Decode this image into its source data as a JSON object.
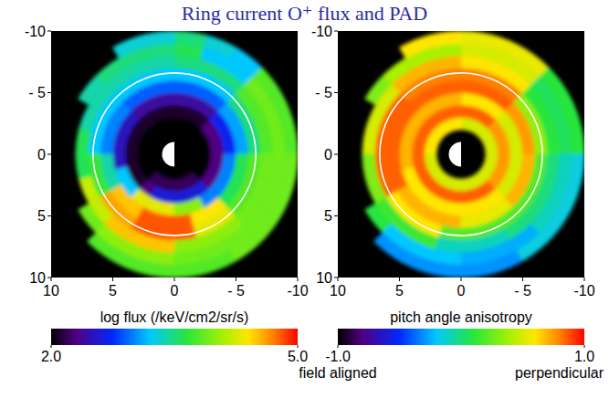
{
  "title": "Ring current O⁺ flux and PAD",
  "chart_data": [
    {
      "type": "polar_heatmap",
      "xlim": [
        10,
        -10
      ],
      "xticks": [
        10,
        5,
        0,
        {
          "value": -5,
          "label": "- 5"
        },
        -10
      ],
      "ylim": [
        -10,
        10
      ],
      "yticks": [
        -10,
        {
          "value": -5,
          "label": "- 5"
        },
        0,
        5,
        10
      ],
      "ring_radius": 6.6,
      "earth_radius": 1,
      "r_bins": [
        2,
        3,
        4,
        5,
        6,
        7,
        8,
        9,
        10
      ],
      "mlt_bins": [
        0,
        1,
        2,
        3,
        4,
        5,
        6,
        7,
        8,
        9,
        10,
        11,
        12,
        13,
        14,
        15,
        16,
        17,
        18,
        19,
        20,
        21,
        22,
        23,
        24
      ],
      "cells": [
        [
          2.0,
          2.0,
          2.0,
          2.0,
          2.0,
          2.0,
          2.0,
          2.0,
          2.0,
          2.0,
          2.0,
          2.0,
          2.0,
          2.0,
          2.0,
          2.2,
          2.2,
          2.2,
          2.2,
          2.2,
          2.2,
          2.0,
          2.0,
          2.0
        ],
        [
          2.3,
          2.3,
          2.3,
          2.1,
          2.1,
          2.1,
          2.1,
          2.1,
          2.1,
          2.1,
          2.1,
          2.1,
          2.1,
          2.1,
          2.1,
          2.3,
          2.6,
          2.6,
          2.6,
          2.6,
          2.6,
          2.3,
          2.3,
          2.3
        ],
        [
          2.7,
          2.7,
          2.7,
          2.4,
          2.4,
          2.4,
          2.4,
          2.4,
          2.4,
          2.5,
          2.5,
          2.5,
          2.5,
          3.2,
          3.2,
          4.3,
          4.3,
          4.3,
          4.0,
          4.0,
          3.0,
          3.0,
          3.0,
          3.0
        ],
        [
          3.1,
          3.1,
          3.1,
          2.9,
          2.9,
          2.9,
          2.9,
          2.9,
          2.9,
          3.0,
          3.0,
          3.0,
          3.4,
          3.4,
          4.5,
          4.5,
          4.8,
          4.8,
          4.8,
          4.4,
          4.4,
          3.6,
          3.6,
          3.6
        ],
        [
          3.5,
          3.5,
          3.5,
          3.2,
          3.2,
          3.2,
          3.2,
          3.2,
          3.2,
          3.2,
          3.2,
          3.2,
          3.7,
          3.7,
          4.6,
          4.6,
          4.8,
          4.8,
          4.8,
          4.3,
          4.3,
          3.8,
          3.8,
          3.8
        ],
        [
          3.8,
          3.8,
          3.8,
          3.5,
          3.5,
          3.5,
          3.4,
          3.4,
          3.4,
          3.4,
          3.4,
          3.6,
          3.6,
          4.2,
          4.2,
          4.5,
          4.5,
          4.5,
          4.0,
          4.0,
          4.0,
          3.9,
          3.9,
          3.9
        ],
        [
          3.9,
          3.9,
          3.9,
          3.2,
          3.2,
          3.6,
          3.5,
          3.5,
          3.5,
          3.4,
          null,
          null,
          null,
          null,
          3.9,
          4.0,
          4.0,
          4.0,
          3.9,
          3.9,
          3.9,
          3.9,
          3.9,
          3.9
        ],
        [
          3.8,
          3.8,
          3.8,
          3.2,
          3.3,
          3.5,
          3.3,
          3.3,
          null,
          null,
          null,
          null,
          null,
          null,
          null,
          3.8,
          3.8,
          3.8,
          3.8,
          3.8,
          3.9,
          3.9,
          3.9,
          3.9
        ]
      ],
      "colorbar": {
        "label": "log flux (/keV/cm2/sr/s)",
        "range": [
          2,
          5
        ],
        "ticks": [
          {
            "value": 2,
            "label": "2.0"
          },
          {
            "value": 5,
            "label": "5.0"
          }
        ]
      }
    },
    {
      "type": "polar_heatmap",
      "xlim": [
        10,
        -10
      ],
      "xticks": [
        10,
        5,
        0,
        {
          "value": -5,
          "label": "- 5"
        },
        -10
      ],
      "ylim": [
        -10,
        10
      ],
      "yticks": [
        -10,
        {
          "value": -5,
          "label": "- 5"
        },
        0,
        5,
        10
      ],
      "ring_radius": 6.6,
      "earth_radius": 1,
      "r_bins": [
        2,
        3,
        4,
        5,
        6,
        7,
        8,
        9,
        10
      ],
      "mlt_bins": [
        0,
        1,
        2,
        3,
        4,
        5,
        6,
        7,
        8,
        9,
        10,
        11,
        12,
        13,
        14,
        15,
        16,
        17,
        18,
        19,
        20,
        21,
        22,
        23,
        24
      ],
      "cells": [
        [
          0.5,
          0.5,
          0.5,
          0.5,
          0.5,
          0.5,
          0.6,
          0.6,
          0.6,
          0.6,
          0.6,
          0.6,
          0.5,
          0.5,
          0.5,
          0.5,
          0.5,
          0.5,
          0.5,
          0.5,
          0.5,
          0.5,
          0.5,
          0.5
        ],
        [
          0.75,
          0.75,
          0.75,
          0.85,
          0.85,
          0.85,
          0.85,
          0.85,
          0.85,
          0.85,
          0.85,
          0.85,
          0.85,
          0.85,
          0.85,
          0.85,
          0.85,
          0.85,
          0.85,
          0.85,
          0.85,
          0.75,
          0.75,
          0.75
        ],
        [
          0.5,
          0.5,
          0.5,
          0.6,
          0.6,
          0.6,
          0.7,
          0.7,
          0.7,
          0.7,
          0.7,
          0.7,
          0.7,
          0.6,
          0.6,
          0.6,
          0.6,
          0.6,
          0.6,
          0.6,
          0.6,
          0.5,
          0.5,
          0.5
        ],
        [
          0.75,
          0.75,
          0.75,
          0.85,
          0.85,
          0.85,
          0.85,
          0.85,
          0.85,
          0.85,
          0.85,
          0.85,
          0.85,
          0.85,
          0.7,
          0.7,
          0.7,
          0.7,
          0.55,
          0.55,
          0.55,
          0.7,
          0.7,
          0.7
        ],
        [
          0.35,
          0.35,
          0.35,
          0.8,
          0.8,
          0.8,
          0.8,
          0.8,
          0.8,
          0.85,
          0.85,
          0.85,
          0.85,
          0.85,
          0.6,
          0.6,
          0.6,
          0.2,
          0.2,
          0.2,
          0.2,
          0.2,
          0.2,
          0.2
        ],
        [
          0.1,
          0.1,
          0.1,
          0.6,
          0.6,
          0.6,
          0.7,
          0.7,
          0.7,
          0.5,
          0.5,
          0.5,
          0.3,
          0.3,
          0.15,
          0.15,
          0.15,
          -0.1,
          -0.1,
          -0.1,
          0.0,
          0.0,
          0.0,
          0.0
        ],
        [
          0.05,
          0.05,
          0.05,
          0.5,
          0.5,
          0.5,
          0.4,
          0.4,
          0.4,
          0.3,
          null,
          null,
          null,
          null,
          0.1,
          -0.2,
          -0.2,
          -0.2,
          -0.25,
          -0.25,
          -0.25,
          -0.1,
          -0.1,
          -0.1
        ],
        [
          0.1,
          0.1,
          0.1,
          0.55,
          0.55,
          0.55,
          0.6,
          0.6,
          null,
          null,
          null,
          null,
          null,
          null,
          null,
          -0.3,
          -0.3,
          -0.3,
          -0.3,
          -0.3,
          -0.15,
          -0.15,
          -0.15,
          -0.15
        ]
      ],
      "colorbar": {
        "label": "pitch angle anisotropy",
        "range": [
          -1,
          1
        ],
        "ticks": [
          {
            "value": -1,
            "label": "-1.0"
          },
          {
            "value": 1,
            "label": "1.0"
          }
        ],
        "end_labels": [
          "field aligned",
          "perpendicular"
        ]
      }
    }
  ]
}
